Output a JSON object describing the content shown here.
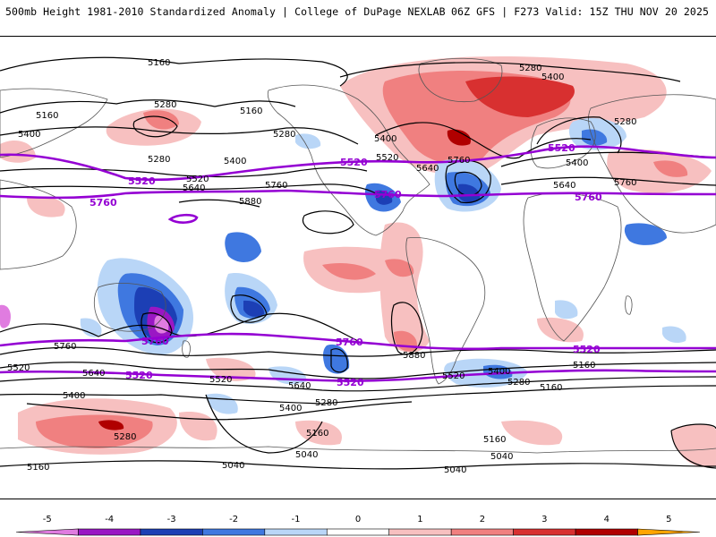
{
  "header": {
    "title": "500mb Height 1981-2010 Standardized Anomaly | College of DuPage NEXLAB",
    "run_info": "06Z GFS | F273 Valid: 15Z THU NOV 20 2025"
  },
  "colors": {
    "purple_contour": "#9400d3",
    "black_contour": "#000000",
    "coast": "#555555"
  },
  "contour_labels_black": [
    "5160",
    "5280",
    "5400",
    "5160",
    "5400",
    "5280",
    "5160",
    "5280",
    "5400",
    "5520",
    "5640",
    "5760",
    "5880",
    "5280",
    "5400",
    "5520",
    "5640",
    "5760",
    "5400",
    "5280",
    "5760",
    "5880",
    "5640",
    "5760",
    "5520",
    "5640",
    "5520",
    "5400",
    "5640",
    "5400",
    "5280",
    "5520",
    "5400",
    "5280",
    "5160",
    "5160",
    "5280",
    "5160",
    "5040",
    "5040",
    "5040",
    "5160",
    "5160",
    "5040"
  ],
  "contour_labels_purple": [
    "5520",
    "5760",
    "5520",
    "5760",
    "5520",
    "5760",
    "5760",
    "5760",
    "5520",
    "5520",
    "5520"
  ],
  "colorbar": {
    "ticks": [
      "-5",
      "-4",
      "-3",
      "-2",
      "-1",
      "0",
      "1",
      "2",
      "3",
      "4",
      "5"
    ],
    "colors": [
      "#e07ce0",
      "#9a17c4",
      "#1c3fb5",
      "#3f78e0",
      "#b9d6f7",
      "#ffffff",
      "#f7c0c0",
      "#f08080",
      "#d83030",
      "#b00000",
      "#ffa500"
    ]
  }
}
